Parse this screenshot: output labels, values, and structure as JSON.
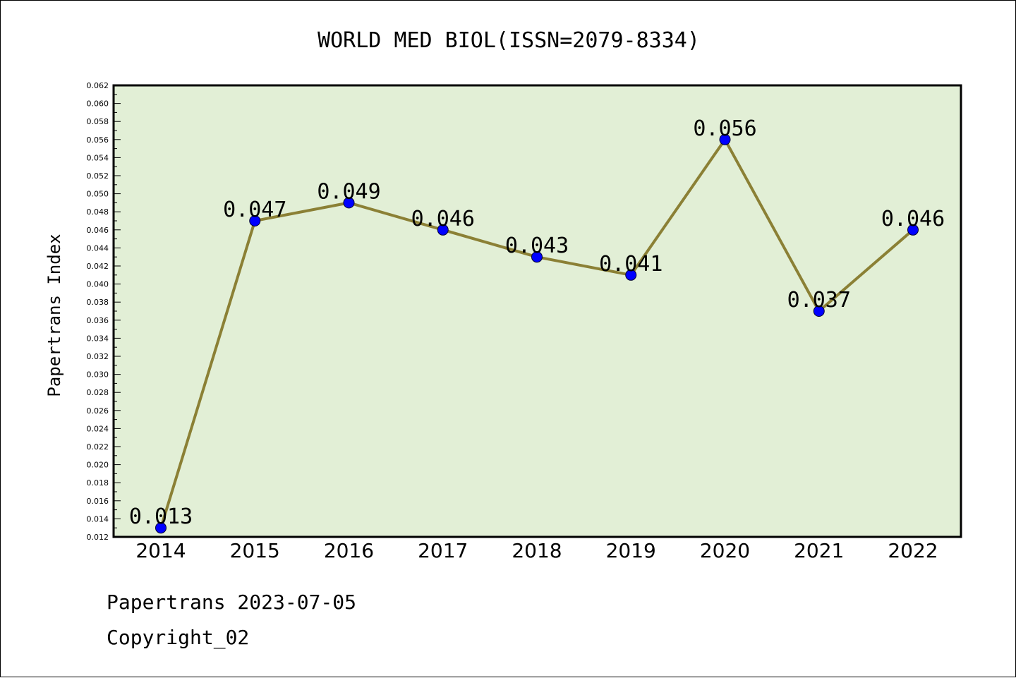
{
  "chart_data": {
    "type": "line",
    "title": "WORLD MED BIOL(ISSN=2079-8334)",
    "xlabel": "",
    "ylabel": "Papertrans Index",
    "categories": [
      "2014",
      "2015",
      "2016",
      "2017",
      "2018",
      "2019",
      "2020",
      "2021",
      "2022"
    ],
    "series": [
      {
        "values": [
          0.013,
          0.047,
          0.049,
          0.046,
          0.043,
          0.041,
          0.056,
          0.037,
          0.046
        ],
        "labels": [
          "0.013",
          "0.047",
          "0.049",
          "0.046",
          "0.043",
          "0.041",
          "0.056",
          "0.037",
          "0.046"
        ]
      }
    ],
    "ylim": [
      0.012,
      0.062
    ],
    "ytick_labels": [
      "0.012",
      "0.014",
      "0.016",
      "0.018",
      "0.020",
      "0.022",
      "0.024",
      "0.026",
      "0.028",
      "0.030",
      "0.032",
      "0.034",
      "0.036",
      "0.038",
      "0.040",
      "0.042",
      "0.044",
      "0.046",
      "0.048",
      "0.050",
      "0.052",
      "0.054",
      "0.056",
      "0.058",
      "0.060",
      "0.062"
    ],
    "grid": false,
    "legend": "none"
  },
  "footer": {
    "line1": "Papertrans 2023-07-05",
    "line2": "Copyright_02"
  },
  "colors": {
    "plot_background": "#e2efd6",
    "line": "#8b8035",
    "marker": "#0000ff",
    "axis": "#000000"
  }
}
